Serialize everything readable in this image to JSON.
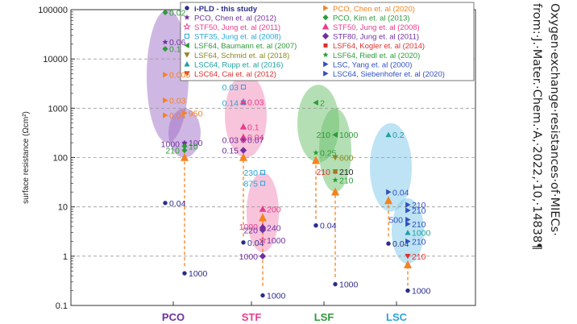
{
  "caption": {
    "line1": "Oxygen·exchange·resistances·of·MIECs·",
    "line2": "from:·J.·Mater.·Chem.·A,·2022,·10,·14838¶"
  },
  "chart_data": {
    "type": "scatter",
    "ylabel": "surface resistance (Ωcm²)",
    "xlabel": "",
    "yscale": "log",
    "ylim": [
      0.1,
      100000
    ],
    "yticks": [
      "0.1",
      "1",
      "10",
      "100",
      "1000",
      "10000",
      "100000"
    ],
    "grid": "y-dashed",
    "categories": [
      {
        "name": "PCO",
        "color": "#7030a0"
      },
      {
        "name": "STF",
        "color": "#e83e8c"
      },
      {
        "name": "LSF",
        "color": "#2e9b3a"
      },
      {
        "name": "LSC",
        "color": "#2aa5d8"
      }
    ],
    "legend_placement": "top",
    "legend": [
      {
        "label": "i-PLD - this study",
        "color": "#2b2d8c",
        "marker": "circle"
      },
      {
        "label": "PCO, Chen et. al (2020)",
        "color": "#f5821f",
        "marker": "tri-right"
      },
      {
        "label": "PCO, Chen et. al (2012)",
        "color": "#7030a0",
        "marker": "star"
      },
      {
        "label": "PCO, Kim et. al (2013)",
        "color": "#2e9b3a",
        "marker": "diamond"
      },
      {
        "label": "STF50, Jung et. al (2011)",
        "color": "#e83e8c",
        "marker": "star-open"
      },
      {
        "label": "STF50, Jung et. al (2008)",
        "color": "#e83e8c",
        "marker": "tri-half"
      },
      {
        "label": "STF35, Jung et. al (2008)",
        "color": "#2aa5d8",
        "marker": "square-open"
      },
      {
        "label": "STF80, Jung et. al (2011)",
        "color": "#7030a0",
        "marker": "diamond-half"
      },
      {
        "label": "LSF64, Baumann et. al (2007)",
        "color": "#2e9b3a",
        "marker": "tri-left"
      },
      {
        "label": "LSF64, Kogler et. al (2014)",
        "color": "#e03030",
        "marker": "square"
      },
      {
        "label": "LSF64, Schmid et. al (2018)",
        "color": "#8a8a20",
        "marker": "tri-down"
      },
      {
        "label": "LSF64, Riedl et. al (2020)",
        "color": "#2e9b3a",
        "marker": "star"
      },
      {
        "label": "LSC64, Rupp et. al (2016)",
        "color": "#20a0a0",
        "marker": "tri-up"
      },
      {
        "label": "LSC, Yang et. al (2000)",
        "color": "#3050c0",
        "marker": "tri-right"
      },
      {
        "label": "LSC64, Cai et. al (2012)",
        "color": "#e03030",
        "marker": "tri-down"
      },
      {
        "label": "LSC64, Siebenhofer et. al (2020)",
        "color": "#3050c0",
        "marker": "tri-right"
      }
    ],
    "ellipses": [
      {
        "category": "PCO",
        "y_top": 100000,
        "y_bottom": 200,
        "color": "#a070c8",
        "opacity": 0.5
      },
      {
        "category": "PCO",
        "y_top": 1000,
        "y_bottom": 100,
        "color": "#a070c8",
        "opacity": 0.5
      },
      {
        "category": "STF",
        "y_top": 5000,
        "y_bottom": 100,
        "color": "#f08ab8",
        "opacity": 0.5
      },
      {
        "category": "STF",
        "y_top": 50,
        "y_bottom": 1.2,
        "color": "#f08ab8",
        "opacity": 0.5
      },
      {
        "category": "LSF",
        "y_top": 3000,
        "y_bottom": 80,
        "color": "#6abf6a",
        "opacity": 0.5
      },
      {
        "category": "LSF",
        "y_top": 1000,
        "y_bottom": 20,
        "color": "#6abf6a",
        "opacity": 0.5
      },
      {
        "category": "LSC",
        "y_top": 500,
        "y_bottom": 8,
        "color": "#7cc8ea",
        "opacity": 0.5
      },
      {
        "category": "LSC",
        "y_top": 15,
        "y_bottom": 0.7,
        "color": "#7cc8ea",
        "opacity": 0.5
      }
    ],
    "arrows": [
      {
        "category": "PCO",
        "from": 0.5,
        "to": 150
      },
      {
        "category": "STF",
        "from": 2,
        "to": 150
      },
      {
        "category": "STF",
        "from": 0.2,
        "to": 9
      },
      {
        "category": "LSF",
        "from": 4.5,
        "to": 130
      },
      {
        "category": "LSF",
        "from": 0.3,
        "to": 30
      },
      {
        "category": "LSC",
        "from": 2,
        "to": 20
      },
      {
        "category": "LSC",
        "from": 0.2,
        "to": 1
      }
    ],
    "points": [
      {
        "category": "PCO",
        "y": 88000,
        "label": "0.02",
        "marker": "diamond",
        "color": "#2e9b3a",
        "label_color": "#2e9b3a",
        "dx": 0
      },
      {
        "category": "PCO",
        "y": 22000,
        "label": "0.06",
        "marker": "star",
        "color": "#7030a0",
        "label_color": "#7030a0",
        "dx": 0
      },
      {
        "category": "PCO",
        "y": 16000,
        "label": "0.1",
        "marker": "diamond",
        "color": "#2e9b3a",
        "label_color": "#2e9b3a",
        "dx": 0
      },
      {
        "category": "PCO",
        "y": 14000,
        "label": "0.12",
        "marker": "star",
        "color": "#7030a0",
        "label_color": "#7030a0",
        "dx": -1,
        "label_left": true
      },
      {
        "category": "PCO",
        "y": 4800,
        "label": "0.005",
        "marker": "tri-right",
        "color": "#f5821f",
        "label_color": "#f5821f",
        "dx": 0
      },
      {
        "category": "PCO",
        "y": 1450,
        "label": "0.03",
        "marker": "tri-right",
        "color": "#f5821f",
        "label_color": "#f5821f",
        "dx": 0
      },
      {
        "category": "PCO",
        "y": 720,
        "label": "0.04",
        "marker": "tri-right",
        "color": "#f5821f",
        "label_color": "#f5821f",
        "dx": 0
      },
      {
        "category": "PCO",
        "y": 12,
        "label": "0.04",
        "marker": "circle",
        "color": "#2b2d8c",
        "label_color": "#2b2d8c",
        "dx": 0
      },
      {
        "category": "PCO",
        "y": 800,
        "label": "950",
        "marker": "tri-right",
        "color": "#f5821f",
        "label_color": "#f5821f",
        "dx": 1
      },
      {
        "category": "PCO",
        "y": 200,
        "label": "100",
        "marker": "star",
        "color": "#7030a0",
        "label_color": "#7030a0",
        "dx": 1
      },
      {
        "category": "PCO",
        "y": 190,
        "label": "1000",
        "marker": "star",
        "color": "#7030a0",
        "label_color": "#7030a0",
        "dx": 1,
        "label_left": true
      },
      {
        "category": "PCO",
        "y": 170,
        "label": "10",
        "marker": "diamond",
        "color": "#2e9b3a",
        "label_color": "#2e9b3a",
        "dx": 1
      },
      {
        "category": "PCO",
        "y": 140,
        "label": "210",
        "marker": "diamond",
        "color": "#2e9b3a",
        "label_color": "#2e9b3a",
        "dx": 1,
        "label_left": true
      },
      {
        "category": "PCO",
        "y": 0.45,
        "label": "1000",
        "marker": "circle",
        "color": "#2b2d8c",
        "label_color": "#2b2d8c",
        "dx": 1
      },
      {
        "category": "STF",
        "y": 2700,
        "label": "0.03",
        "marker": "square-open",
        "color": "#2aa5d8",
        "label_color": "#2aa5d8",
        "dx": 0,
        "label_left": true
      },
      {
        "category": "STF",
        "y": 1350,
        "label": "0.03",
        "marker": "tri-half",
        "color": "#e83e8c",
        "label_color": "#e83e8c",
        "dx": 0
      },
      {
        "category": "STF",
        "y": 1300,
        "label": "0.14",
        "marker": "square-open",
        "color": "#2aa5d8",
        "label_color": "#2aa5d8",
        "dx": 0,
        "label_left": true
      },
      {
        "category": "STF",
        "y": 420,
        "label": "0.1",
        "marker": "tri-half",
        "color": "#e83e8c",
        "label_color": "#e83e8c",
        "dx": 0
      },
      {
        "category": "STF",
        "y": 260,
        "label": "0.04",
        "marker": "tri-half",
        "color": "#e83e8c",
        "label_color": "#e83e8c",
        "dx": 0
      },
      {
        "category": "STF",
        "y": 230,
        "label": "0.07",
        "marker": "diamond-half",
        "color": "#7030a0",
        "label_color": "#7030a0",
        "dx": 0
      },
      {
        "category": "STF",
        "y": 230,
        "label": "0.03",
        "marker": "star-open",
        "color": "#e83e8c",
        "label_color": "#7030a0",
        "dx": 0,
        "label_left": true
      },
      {
        "category": "STF",
        "y": 140,
        "label": "0.15",
        "marker": "diamond-half",
        "color": "#7030a0",
        "label_color": "#7030a0",
        "dx": 0,
        "label_left": true
      },
      {
        "category": "STF",
        "y": 1.9,
        "label": "0.04",
        "marker": "circle",
        "color": "#2b2d8c",
        "label_color": "#2b2d8c",
        "dx": 0
      },
      {
        "category": "STF",
        "y": 50,
        "label": "230",
        "marker": "square-open",
        "color": "#2aa5d8",
        "label_color": "#2aa5d8",
        "dx": 1,
        "label_left": true
      },
      {
        "category": "STF",
        "y": 30,
        "label": "875",
        "marker": "square-open",
        "color": "#2aa5d8",
        "label_color": "#2aa5d8",
        "dx": 1,
        "label_left": true
      },
      {
        "category": "STF",
        "y": 9,
        "label": "200",
        "marker": "tri-half",
        "color": "#e83e8c",
        "label_color": "#e83e8c",
        "dx": 1
      },
      {
        "category": "STF",
        "y": 4,
        "label": "1000",
        "marker": "tri-half",
        "color": "#e83e8c",
        "label_color": "#e83e8c",
        "dx": 1,
        "label_left": true
      },
      {
        "category": "STF",
        "y": 3.8,
        "label": "240",
        "marker": "diamond-half",
        "color": "#7030a0",
        "label_color": "#7030a0",
        "dx": 1
      },
      {
        "category": "STF",
        "y": 3.4,
        "label": "220",
        "marker": "diamond-half",
        "color": "#7030a0",
        "label_color": "#7030a0",
        "dx": 1,
        "label_left": true
      },
      {
        "category": "STF",
        "y": 2.1,
        "label": "1000",
        "marker": "star-open",
        "color": "#e83e8c",
        "label_color": "#7030a0",
        "dx": 1
      },
      {
        "category": "STF",
        "y": 1.0,
        "label": "1000",
        "marker": "diamond-half",
        "color": "#7030a0",
        "label_color": "#7030a0",
        "dx": 1,
        "label_left": true
      },
      {
        "category": "STF",
        "y": 0.16,
        "label": "1000",
        "marker": "circle",
        "color": "#2b2d8c",
        "label_color": "#2b2d8c",
        "dx": 1
      },
      {
        "category": "LSF",
        "y": 1300,
        "label": "2",
        "marker": "tri-left",
        "color": "#2e9b3a",
        "label_color": "#2e9b3a",
        "dx": 0
      },
      {
        "category": "LSF",
        "y": 125,
        "label": "0.25",
        "marker": "star",
        "color": "#2e9b3a",
        "label_color": "#2e9b3a",
        "dx": 0
      },
      {
        "category": "LSF",
        "y": 4.2,
        "label": "0.04",
        "marker": "circle",
        "color": "#2b2d8c",
        "label_color": "#2b2d8c",
        "dx": 0
      },
      {
        "category": "LSF",
        "y": 290,
        "label": "210",
        "marker": "tri-left",
        "color": "#2e9b3a",
        "label_color": "#2e9b3a",
        "dx": 1,
        "label_left": true
      },
      {
        "category": "LSF",
        "y": 290,
        "label": "1000",
        "marker": "tri-left",
        "color": "#2e9b3a",
        "label_color": "#2e9b3a",
        "dx": 1
      },
      {
        "category": "LSF",
        "y": 100,
        "label": "600",
        "marker": "tri-down",
        "color": "#8a8a20",
        "label_color": "#8a8a20",
        "dx": 1
      },
      {
        "category": "LSF",
        "y": 52,
        "label": "210",
        "marker": "square",
        "color": "#e03030",
        "label_color": "#e03030",
        "dx": 1,
        "label_left": true
      },
      {
        "category": "LSF",
        "y": 52,
        "label": "210",
        "marker": "tri-down",
        "color": "#8a8a20",
        "label_color": "#222222",
        "dx": 1
      },
      {
        "category": "LSF",
        "y": 35,
        "label": "210",
        "marker": "star",
        "color": "#2e9b3a",
        "label_color": "#2e9b3a",
        "dx": 1
      },
      {
        "category": "LSF",
        "y": 0.27,
        "label": "1000",
        "marker": "circle",
        "color": "#2b2d8c",
        "label_color": "#2b2d8c",
        "dx": 1
      },
      {
        "category": "LSC",
        "y": 290,
        "label": "0.2",
        "marker": "tri-up",
        "color": "#20a0a0",
        "label_color": "#20a0a0",
        "dx": 0
      },
      {
        "category": "LSC",
        "y": 20,
        "label": "0.04",
        "marker": "tri-right",
        "color": "#3050c0",
        "label_color": "#3050c0",
        "dx": 0
      },
      {
        "category": "LSC",
        "y": 1.8,
        "label": "0.04",
        "marker": "circle",
        "color": "#2b2d8c",
        "label_color": "#2b2d8c",
        "dx": 0
      },
      {
        "category": "LSC",
        "y": 11,
        "label": "210",
        "marker": "tri-right",
        "color": "#3050c0",
        "label_color": "#3050c0",
        "dx": 1
      },
      {
        "category": "LSC",
        "y": 8.5,
        "label": "210",
        "marker": "tri-right",
        "color": "#3050c0",
        "label_color": "#3050c0",
        "dx": 1
      },
      {
        "category": "LSC",
        "y": 5.5,
        "label": "500",
        "marker": "tri-right",
        "color": "#3050c0",
        "label_color": "#3050c0",
        "dx": 1,
        "label_left": true
      },
      {
        "category": "LSC",
        "y": 4.5,
        "label": "210",
        "marker": "tri-right",
        "color": "#3050c0",
        "label_color": "#3050c0",
        "dx": 1
      },
      {
        "category": "LSC",
        "y": 3,
        "label": "1000",
        "marker": "tri-up",
        "color": "#20a0a0",
        "label_color": "#20a0a0",
        "dx": 1
      },
      {
        "category": "LSC",
        "y": 2,
        "label": "210",
        "marker": "tri-right",
        "color": "#3050c0",
        "label_color": "#3050c0",
        "dx": 1
      },
      {
        "category": "LSC",
        "y": 1.0,
        "label": "210",
        "marker": "tri-down",
        "color": "#e03030",
        "label_color": "#e03030",
        "dx": 1
      },
      {
        "category": "LSC",
        "y": 0.2,
        "label": "1000",
        "marker": "circle",
        "color": "#2b2d8c",
        "label_color": "#2b2d8c",
        "dx": 1
      }
    ]
  }
}
